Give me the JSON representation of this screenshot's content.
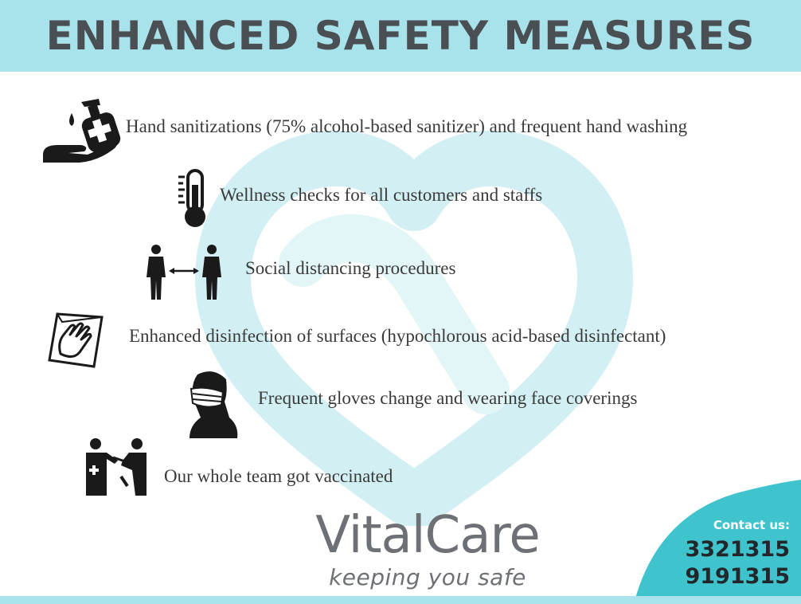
{
  "header": {
    "title": "ENHANCED SAFETY MEASURES"
  },
  "items": [
    {
      "icon": "hand-sanitizer-icon",
      "text": "Hand sanitizations (75% alcohol-based sanitizer) and frequent hand washing"
    },
    {
      "icon": "thermometer-icon",
      "text": "Wellness checks for all customers and staffs"
    },
    {
      "icon": "social-distance-icon",
      "text": "Social distancing procedures"
    },
    {
      "icon": "disinfect-wipe-icon",
      "text": "Enhanced disinfection of surfaces (hypochlorous acid-based disinfectant)"
    },
    {
      "icon": "face-mask-icon",
      "text": "Frequent gloves change and wearing face coverings"
    },
    {
      "icon": "vaccination-icon",
      "text": "Our whole team got vaccinated"
    }
  ],
  "logo": {
    "brand": "VitalCare",
    "tagline": "keeping you safe"
  },
  "contact": {
    "label": "Contact us:",
    "phones": [
      "3321315",
      "9191315"
    ]
  },
  "colors": {
    "header_bg": "#a8e2ea",
    "title": "#4a4f54",
    "contact_bg": "#3fc3cc",
    "watermark": "#d2eff3"
  }
}
